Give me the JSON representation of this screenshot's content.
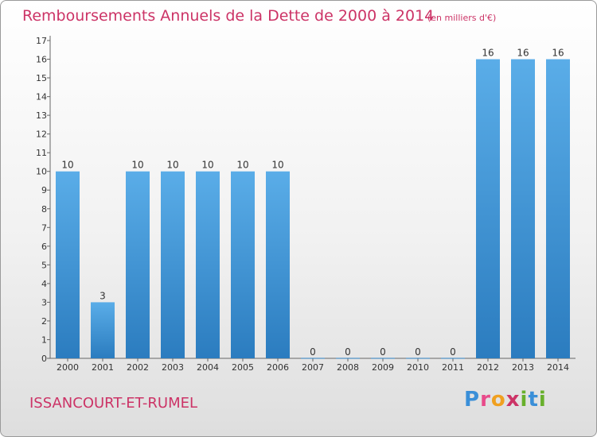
{
  "header": {
    "title": "Remboursements Annuels de la Dette de 2000 à 2014",
    "unit": "(en milliers d'€)"
  },
  "footer": {
    "commune": "ISSANCOURT-ET-RUMEL",
    "brand_letters": [
      "P",
      "r",
      "o",
      "x",
      "i",
      "t",
      "i"
    ]
  },
  "colors": {
    "title": "#cc3366",
    "bar_light": "#5aade8",
    "bar_dark": "#2b7cbf",
    "brand": [
      "#3a8fd8",
      "#e84a8a",
      "#f0a020",
      "#cc3366",
      "#68b02c",
      "#3a8fd8",
      "#68b02c"
    ]
  },
  "chart_data": {
    "type": "bar",
    "title": "Remboursements Annuels de la Dette de 2000 à 2014",
    "categories": [
      "2000",
      "2001",
      "2002",
      "2003",
      "2004",
      "2005",
      "2006",
      "2007",
      "2008",
      "2009",
      "2010",
      "2011",
      "2012",
      "2013",
      "2014"
    ],
    "values": [
      10,
      3,
      10,
      10,
      10,
      10,
      10,
      0,
      0,
      0,
      0,
      0,
      16,
      16,
      16
    ],
    "value_labels": [
      "10",
      "3",
      "10",
      "10",
      "10",
      "10",
      "10",
      "0",
      "0",
      "0",
      "0",
      "0",
      "16",
      "16",
      "16"
    ],
    "ylim": [
      0,
      17
    ],
    "yticks": [
      "0",
      "1",
      "2",
      "3",
      "4",
      "5",
      "6",
      "7",
      "8",
      "9",
      "10",
      "11",
      "12",
      "13",
      "14",
      "15",
      "16",
      "17"
    ],
    "grid": false,
    "legend": "none"
  }
}
